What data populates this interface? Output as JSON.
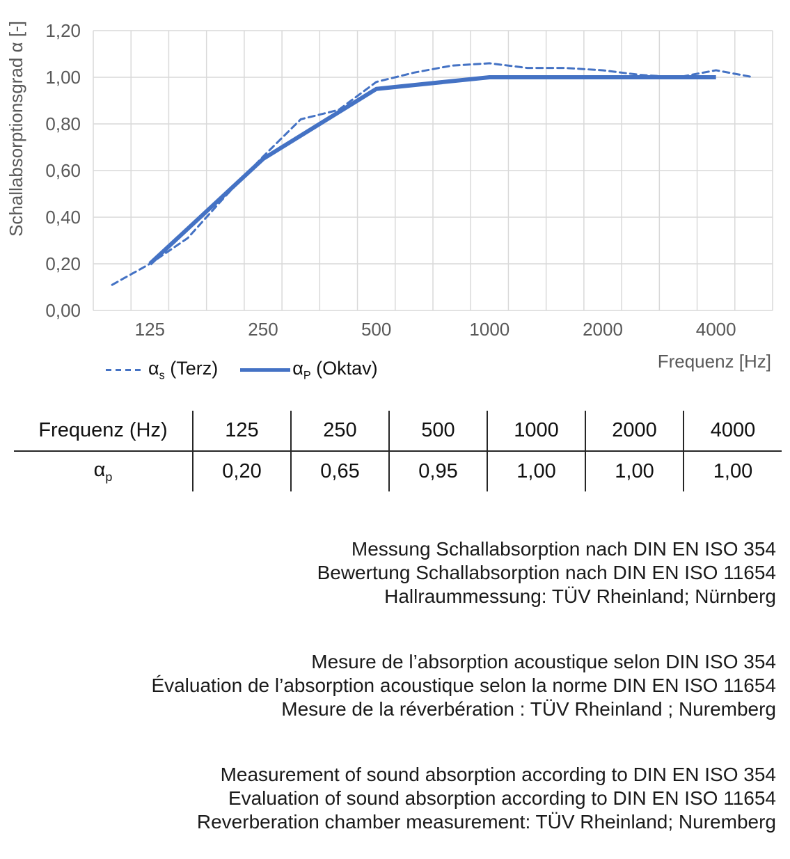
{
  "chart": {
    "ylabel": "Schallabsorptionsgrad α [-]",
    "xlabel": "Frequenz [Hz]",
    "y_ticks": [
      "1,20",
      "1,00",
      "0,80",
      "0,60",
      "0,40",
      "0,20",
      "0,00"
    ],
    "x_ticks": [
      "125",
      "250",
      "500",
      "1000",
      "2000",
      "4000"
    ],
    "colors": {
      "series": "#4472C4",
      "grid": "#D9D9D9",
      "axis_text": "#595959"
    }
  },
  "chart_data": {
    "type": "line",
    "title": "",
    "xlabel": "Frequenz [Hz]",
    "ylabel": "Schallabsorptionsgrad α [-]",
    "x_scale": "logarithmic (third-octave bands, equal spacing per band)",
    "ylim": [
      0,
      1.2
    ],
    "grid": true,
    "legend_position": "bottom-left",
    "categories": [
      100,
      125,
      160,
      200,
      250,
      315,
      400,
      500,
      630,
      800,
      1000,
      1250,
      1600,
      2000,
      2500,
      3150,
      4000,
      5000
    ],
    "series": [
      {
        "name": "αs (Terz)",
        "style": "dashed",
        "values": [
          0.11,
          0.2,
          0.31,
          0.49,
          0.66,
          0.82,
          0.86,
          0.98,
          1.02,
          1.05,
          1.06,
          1.04,
          1.04,
          1.03,
          1.01,
          1.0,
          1.03,
          1.0
        ]
      },
      {
        "name": "αP (Oktav)",
        "style": "solid",
        "categories": [
          125,
          250,
          500,
          1000,
          2000,
          4000
        ],
        "values": [
          0.2,
          0.65,
          0.95,
          1.0,
          1.0,
          1.0
        ]
      }
    ]
  },
  "legend": {
    "items": [
      {
        "symbol": "α",
        "sub": "s",
        "label": " (Terz)",
        "line": "dashed"
      },
      {
        "symbol": "α",
        "sub": "P",
        "label": " (Oktav)",
        "line": "solid"
      }
    ]
  },
  "table": {
    "header": [
      "Frequenz (Hz)",
      "125",
      "250",
      "500",
      "1000",
      "2000",
      "4000"
    ],
    "row_label": {
      "symbol": "α",
      "sub": "p"
    },
    "values": [
      "0,20",
      "0,65",
      "0,95",
      "1,00",
      "1,00",
      "1,00"
    ]
  },
  "notes": {
    "german": [
      "Messung Schallabsorption nach DIN EN ISO 354",
      "Bewertung Schallabsorption nach DIN EN ISO 11654",
      "Hallraummessung: TÜV Rheinland; Nürnberg"
    ],
    "french": [
      "Mesure de l’absorption acoustique selon DIN ISO 354",
      "Évaluation de l’absorption acoustique selon la norme DIN EN ISO 11654",
      "Mesure de la réverbération : TÜV Rheinland ; Nuremberg"
    ],
    "english": [
      "Measurement of sound absorption according to DIN EN ISO 354",
      "Evaluation of sound absorption according to DIN EN ISO 11654",
      "Reverberation chamber measurement: TÜV Rheinland; Nuremberg"
    ]
  }
}
